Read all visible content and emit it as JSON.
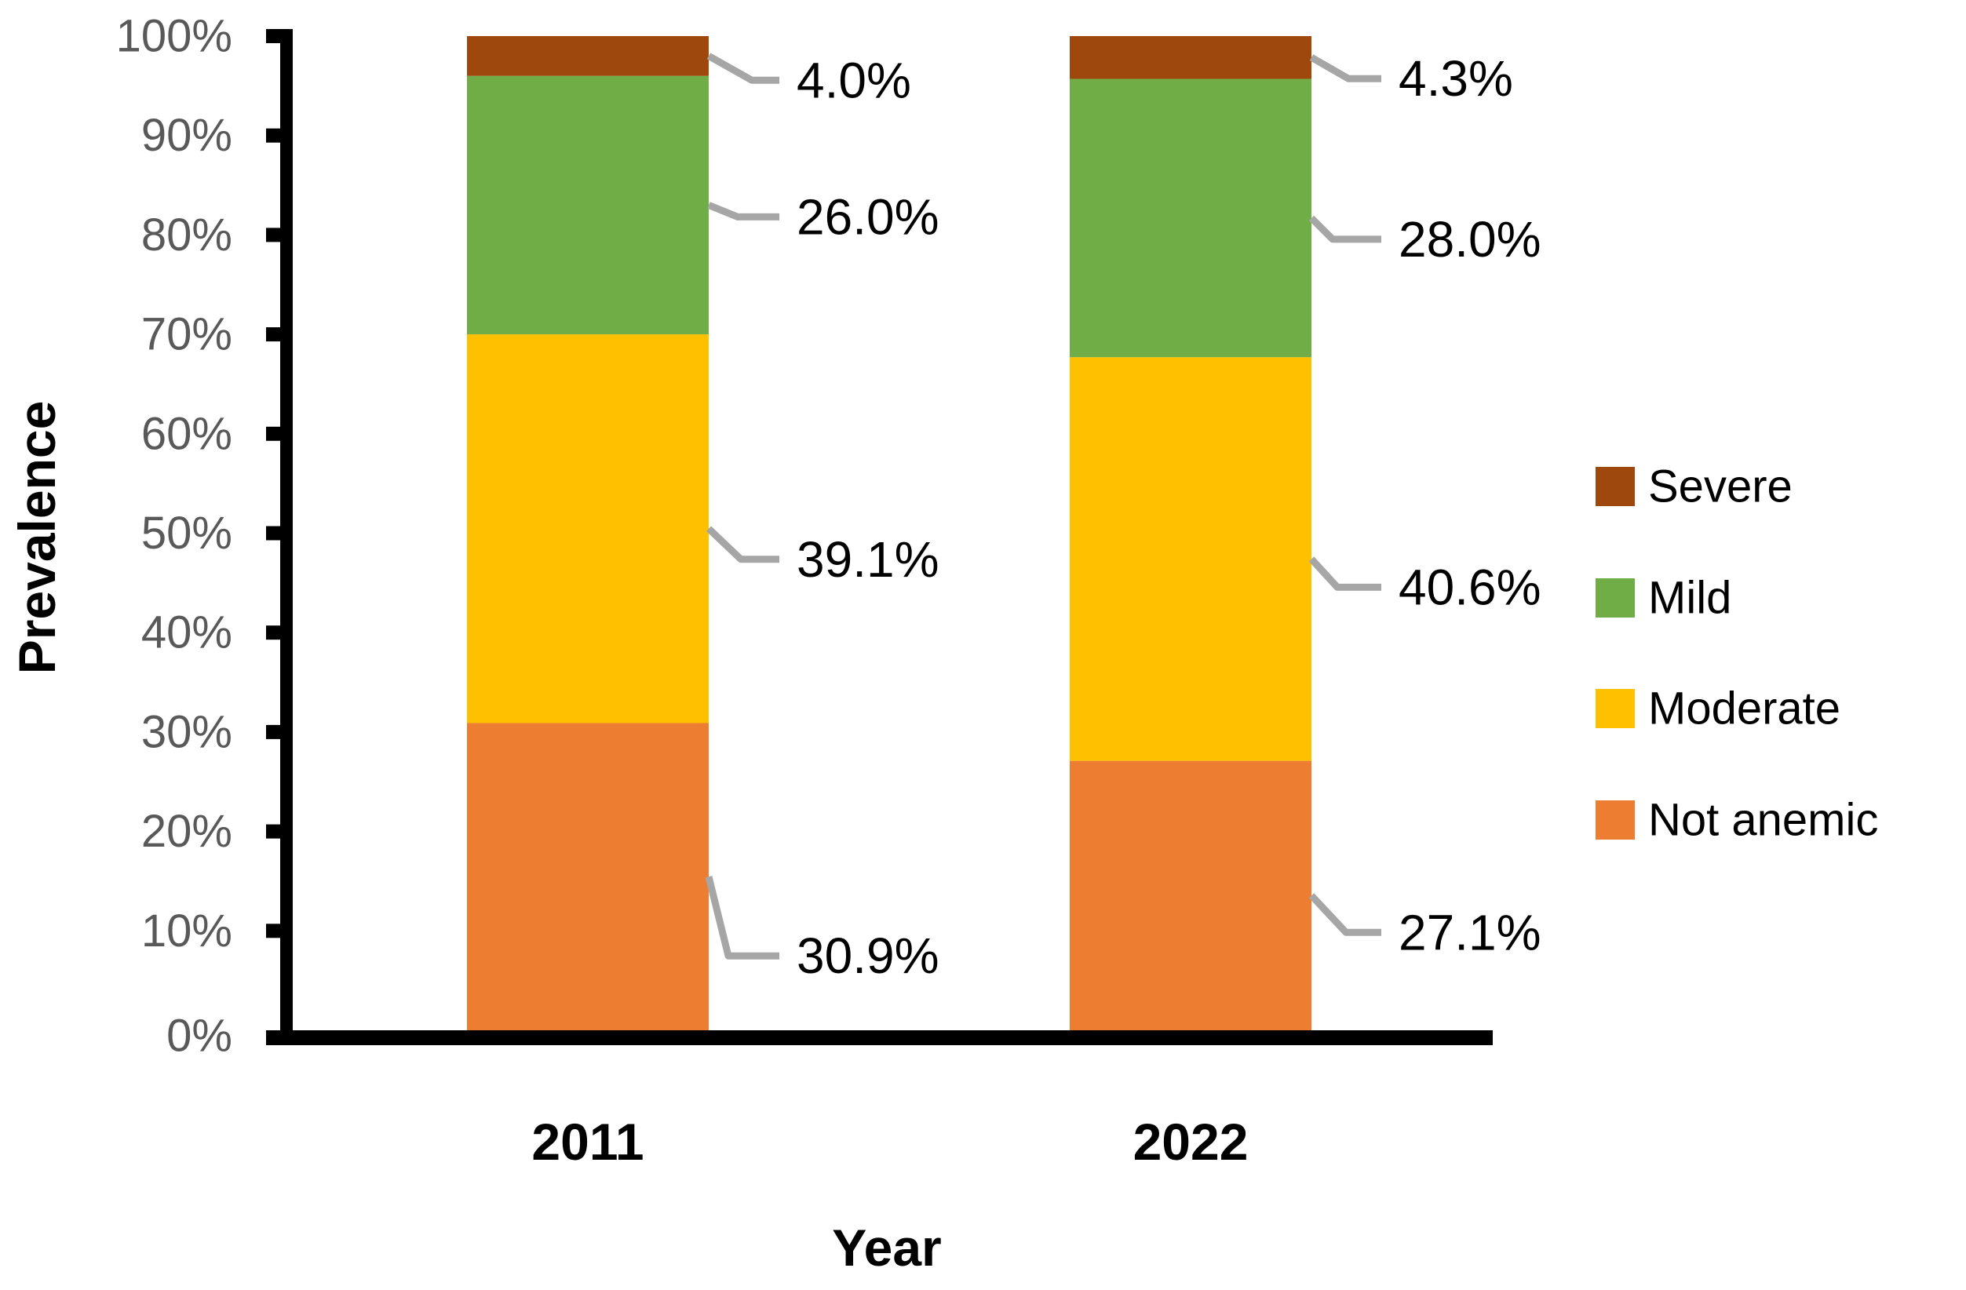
{
  "chart_data": {
    "type": "bar",
    "stacked": true,
    "orientation": "vertical",
    "title": "",
    "xlabel": "Year",
    "ylabel": "Prevalence",
    "categories": [
      "2011",
      "2022"
    ],
    "series": [
      {
        "name": "Not anemic",
        "color": "#ED7D31",
        "values": [
          30.9,
          27.1
        ],
        "labels": [
          "30.9%",
          "27.1%"
        ]
      },
      {
        "name": "Moderate",
        "color": "#FFC000",
        "values": [
          39.1,
          40.6
        ],
        "labels": [
          "39.1%",
          "40.6%"
        ]
      },
      {
        "name": "Mild",
        "color": "#70AD47",
        "values": [
          26.0,
          28.0
        ],
        "labels": [
          "26.0%",
          "28.0%"
        ]
      },
      {
        "name": "Severe",
        "color": "#9E480E",
        "values": [
          4.0,
          4.3
        ],
        "labels": [
          "4.0%",
          "4.3%"
        ]
      }
    ],
    "legend": {
      "position": "right",
      "items": [
        "Severe",
        "Mild",
        "Moderate",
        "Not anemic"
      ]
    },
    "y_axis": {
      "min": 0,
      "max": 100,
      "step": 10,
      "tick_labels": [
        "0%",
        "10%",
        "20%",
        "30%",
        "40%",
        "50%",
        "60%",
        "70%",
        "80%",
        "90%",
        "100%"
      ],
      "grid": false
    },
    "style_colors": {
      "axis_line": "#000000",
      "tick_label": "#595959",
      "data_label": "#000000",
      "leader_line": "#A6A6A6",
      "category_label": "#000000",
      "axis_title": "#000000",
      "legend_text": "#000000",
      "background": "#FFFFFF"
    }
  }
}
